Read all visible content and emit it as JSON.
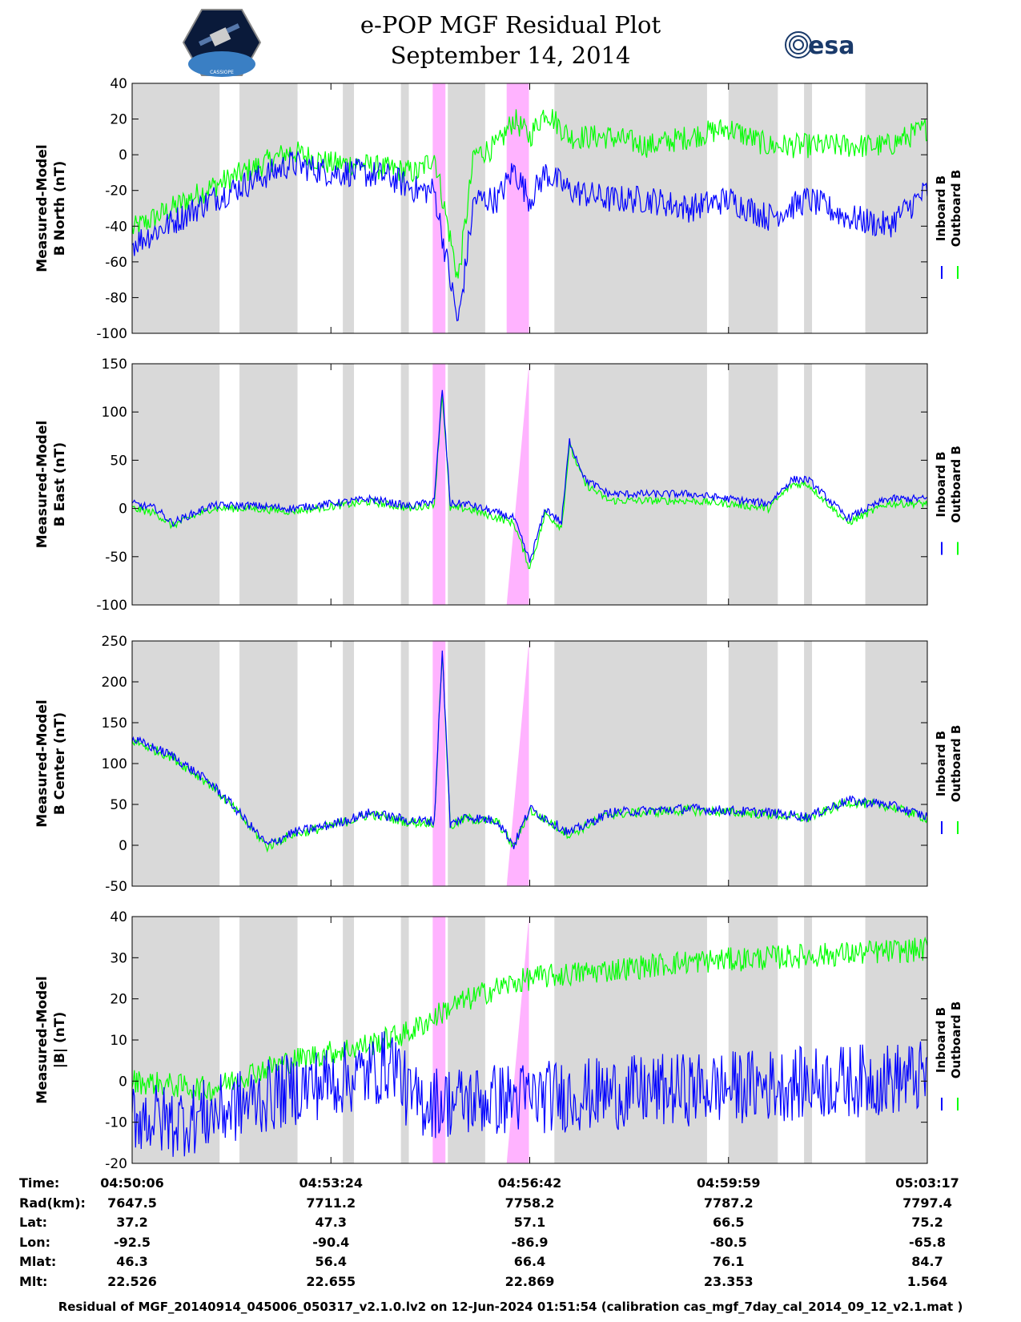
{
  "header": {
    "title": "e-POP MGF Residual Plot",
    "date": "September 14, 2014",
    "logo_left_name": "CASSIOPE",
    "logo_right_text": "esa"
  },
  "colors": {
    "inboard": "#0000ff",
    "outboard": "#00ff00",
    "gray_band": "#d9d9d9",
    "pink_band": "#ffb3ff"
  },
  "chart_data": [
    {
      "type": "line",
      "ylabel_line1": "Measured-Model",
      "ylabel_line2": "B North (nT)",
      "ylim": [
        -100,
        40
      ],
      "yticks": [
        40,
        20,
        0,
        -20,
        -40,
        -60,
        -80,
        -100
      ],
      "series": [
        {
          "name": "Inboard B",
          "color": "#0000ff",
          "x": [
            0,
            0.05,
            0.1,
            0.15,
            0.2,
            0.25,
            0.28,
            0.32,
            0.36,
            0.38,
            0.41,
            0.43,
            0.46,
            0.48,
            0.5,
            0.52,
            0.55,
            0.6,
            0.65,
            0.7,
            0.75,
            0.8,
            0.85,
            0.9,
            0.95,
            1.0
          ],
          "y": [
            -50,
            -38,
            -25,
            -15,
            -5,
            -10,
            -10,
            -12,
            -20,
            -20,
            -95,
            -25,
            -25,
            -8,
            -25,
            -10,
            -20,
            -25,
            -25,
            -30,
            -25,
            -35,
            -25,
            -35,
            -40,
            -20
          ],
          "noise": 8
        },
        {
          "name": "Outboard B",
          "color": "#00ff00",
          "x": [
            0,
            0.05,
            0.1,
            0.15,
            0.2,
            0.25,
            0.28,
            0.32,
            0.36,
            0.38,
            0.41,
            0.43,
            0.46,
            0.48,
            0.5,
            0.52,
            0.55,
            0.6,
            0.65,
            0.7,
            0.75,
            0.8,
            0.85,
            0.9,
            0.95,
            1.0
          ],
          "y": [
            -42,
            -30,
            -18,
            -8,
            2,
            -5,
            -5,
            -8,
            -10,
            0,
            -70,
            0,
            5,
            20,
            10,
            25,
            10,
            10,
            5,
            10,
            15,
            5,
            5,
            5,
            5,
            15
          ],
          "noise": 7
        }
      ]
    },
    {
      "type": "line",
      "ylabel_line1": "Measured-Model",
      "ylabel_line2": "B East (nT)",
      "ylim": [
        -100,
        150
      ],
      "yticks": [
        150,
        100,
        50,
        0,
        -50,
        -100
      ],
      "series": [
        {
          "name": "Inboard B",
          "color": "#0000ff",
          "x": [
            0,
            0.03,
            0.05,
            0.1,
            0.15,
            0.2,
            0.25,
            0.3,
            0.35,
            0.38,
            0.39,
            0.4,
            0.42,
            0.44,
            0.48,
            0.5,
            0.52,
            0.54,
            0.55,
            0.57,
            0.6,
            0.7,
            0.75,
            0.8,
            0.83,
            0.85,
            0.9,
            0.95,
            1.0
          ],
          "y": [
            5,
            0,
            -15,
            3,
            3,
            0,
            5,
            10,
            2,
            8,
            125,
            5,
            5,
            0,
            -10,
            -55,
            0,
            -15,
            70,
            30,
            15,
            15,
            10,
            5,
            30,
            30,
            -10,
            10,
            10
          ],
          "noise": 4
        },
        {
          "name": "Outboard B",
          "color": "#00ff00",
          "x": [
            0,
            0.03,
            0.05,
            0.1,
            0.15,
            0.2,
            0.25,
            0.3,
            0.35,
            0.38,
            0.39,
            0.4,
            0.42,
            0.44,
            0.48,
            0.5,
            0.52,
            0.54,
            0.55,
            0.57,
            0.6,
            0.7,
            0.75,
            0.8,
            0.83,
            0.85,
            0.9,
            0.95,
            1.0
          ],
          "y": [
            0,
            -5,
            -18,
            0,
            0,
            -3,
            2,
            7,
            0,
            5,
            120,
            0,
            0,
            -5,
            -15,
            -62,
            -5,
            -20,
            65,
            25,
            8,
            8,
            5,
            0,
            25,
            25,
            -15,
            5,
            5
          ],
          "noise": 4
        }
      ]
    },
    {
      "type": "line",
      "ylabel_line1": "Measured-Model",
      "ylabel_line2": "B Center (nT)",
      "ylim": [
        -50,
        250
      ],
      "yticks": [
        250,
        200,
        150,
        100,
        50,
        0,
        -50
      ],
      "series": [
        {
          "name": "Inboard B",
          "color": "#0000ff",
          "x": [
            0,
            0.05,
            0.1,
            0.13,
            0.17,
            0.2,
            0.25,
            0.3,
            0.35,
            0.38,
            0.39,
            0.4,
            0.42,
            0.46,
            0.48,
            0.5,
            0.55,
            0.6,
            0.7,
            0.8,
            0.85,
            0.9,
            0.95,
            1.0
          ],
          "y": [
            130,
            110,
            75,
            45,
            0,
            15,
            25,
            40,
            30,
            30,
            240,
            25,
            35,
            30,
            0,
            45,
            15,
            40,
            45,
            40,
            35,
            55,
            50,
            35
          ],
          "noise": 6
        },
        {
          "name": "Outboard B",
          "color": "#00ff00",
          "x": [
            0,
            0.05,
            0.1,
            0.13,
            0.17,
            0.2,
            0.25,
            0.3,
            0.35,
            0.38,
            0.39,
            0.4,
            0.42,
            0.46,
            0.48,
            0.5,
            0.55,
            0.6,
            0.7,
            0.8,
            0.85,
            0.9,
            0.95,
            1.0
          ],
          "y": [
            128,
            108,
            73,
            43,
            -2,
            13,
            23,
            38,
            28,
            28,
            238,
            23,
            33,
            28,
            -2,
            43,
            13,
            38,
            43,
            38,
            33,
            53,
            48,
            33
          ],
          "noise": 6
        }
      ]
    },
    {
      "type": "line",
      "ylabel_line1": "Measured-Model",
      "ylabel_line2": "|B| (nT)",
      "ylim": [
        -20,
        40
      ],
      "yticks": [
        40,
        30,
        20,
        10,
        0,
        -10,
        -20
      ],
      "series": [
        {
          "name": "Inboard B",
          "color": "#0000ff",
          "x": [
            0,
            0.05,
            0.1,
            0.15,
            0.2,
            0.25,
            0.3,
            0.33,
            0.35,
            0.4,
            0.5,
            0.6,
            0.7,
            0.8,
            0.9,
            1.0
          ],
          "y": [
            -8,
            -10,
            -8,
            -5,
            -2,
            0,
            2,
            5,
            -5,
            -5,
            -4,
            -3,
            -2,
            -1,
            0,
            1
          ],
          "noise": 9
        },
        {
          "name": "Outboard B",
          "color": "#00ff00",
          "x": [
            0,
            0.05,
            0.1,
            0.15,
            0.2,
            0.25,
            0.3,
            0.35,
            0.4,
            0.45,
            0.5,
            0.6,
            0.7,
            0.8,
            0.9,
            1.0
          ],
          "y": [
            0,
            -1,
            -2,
            2,
            5,
            7,
            9,
            12,
            18,
            22,
            25,
            27,
            29,
            30,
            31,
            32
          ],
          "noise": 3
        }
      ]
    }
  ],
  "gray_bands": [
    [
      0,
      0.11
    ],
    [
      0.135,
      0.208
    ],
    [
      0.265,
      0.279
    ],
    [
      0.338,
      0.348
    ],
    [
      0.397,
      0.444
    ],
    [
      0.531,
      0.723
    ],
    [
      0.75,
      0.812
    ],
    [
      0.845,
      0.855
    ],
    [
      0.922,
      1.0
    ]
  ],
  "pink_bands": [
    [
      0.378,
      0.394
    ],
    [
      0.471,
      0.499
    ]
  ],
  "legend": {
    "inboard": "Inboard B",
    "outboard": "Outboard B"
  },
  "xticks": [
    0,
    0.25,
    0.5,
    0.75,
    1.0
  ],
  "table": {
    "labels": [
      "Time:",
      "Rad(km):",
      "Lat:",
      "Lon:",
      "Mlat:",
      "Mlt:"
    ],
    "columns": [
      [
        "04:50:06",
        "7647.5",
        "37.2",
        "-92.5",
        "46.3",
        "22.526"
      ],
      [
        "04:53:24",
        "7711.2",
        "47.3",
        "-90.4",
        "56.4",
        "22.655"
      ],
      [
        "04:56:42",
        "7758.2",
        "57.1",
        "-86.9",
        "66.4",
        "22.869"
      ],
      [
        "04:59:59",
        "7787.2",
        "66.5",
        "-80.5",
        "76.1",
        "23.353"
      ],
      [
        "05:03:17",
        "7797.4",
        "75.2",
        "-65.8",
        "84.7",
        "1.564"
      ]
    ]
  },
  "footer": "Residual of MGF_20140914_045006_050317_v2.1.0.lv2 on 12-Jun-2024 01:51:54 (calibration cas_mgf_7day_cal_2014_09_12_v2.1.mat )"
}
